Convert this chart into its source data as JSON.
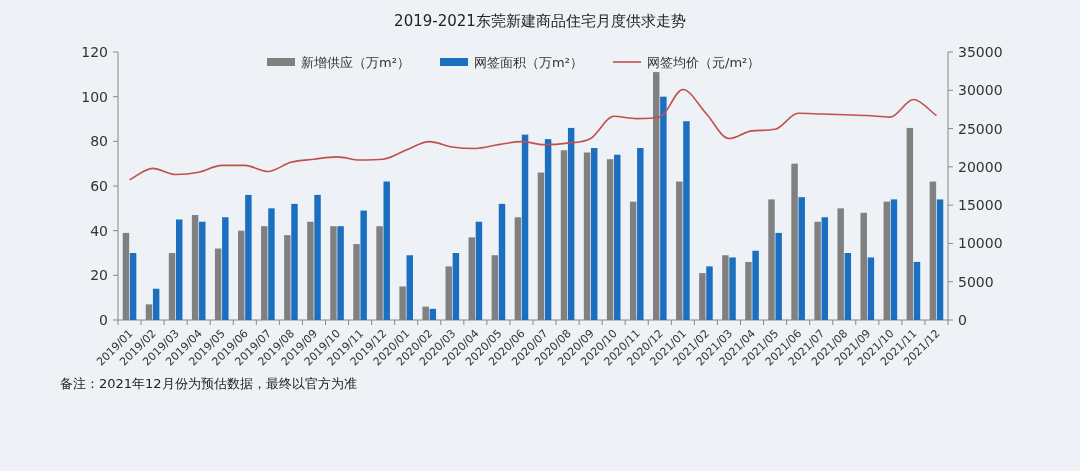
{
  "chart_data": {
    "type": "bar",
    "title": "2019-2021东莞新建商品住宅月度供求走势",
    "categories": [
      "2019/01",
      "2019/02",
      "2019/03",
      "2019/04",
      "2019/05",
      "2019/06",
      "2019/07",
      "2019/08",
      "2019/09",
      "2019/10",
      "2019/11",
      "2019/12",
      "2020/01",
      "2020/02",
      "2020/03",
      "2020/04",
      "2020/05",
      "2020/06",
      "2020/07",
      "2020/08",
      "2020/09",
      "2020/10",
      "2020/11",
      "2020/12",
      "2021/01",
      "2021/02",
      "2021/03",
      "2021/04",
      "2021/05",
      "2021/06",
      "2021/07",
      "2021/08",
      "2021/09",
      "2021/10",
      "2021/11",
      "2021/12"
    ],
    "series": [
      {
        "name": "新增供应（万m²）",
        "color": "#808080",
        "values": [
          39,
          7,
          30,
          47,
          32,
          40,
          42,
          38,
          44,
          42,
          34,
          42,
          15,
          6,
          24,
          37,
          29,
          46,
          66,
          76,
          75,
          72,
          53,
          111,
          62,
          21,
          29,
          26,
          54,
          70,
          44,
          50,
          48,
          53,
          86,
          62
        ]
      },
      {
        "name": "网签面积（万m²）",
        "color": "#1a6fc0",
        "values": [
          30,
          14,
          45,
          44,
          46,
          56,
          50,
          52,
          56,
          42,
          49,
          62,
          29,
          5,
          30,
          44,
          52,
          83,
          81,
          86,
          77,
          74,
          77,
          100,
          89,
          24,
          28,
          31,
          39,
          55,
          46,
          30,
          28,
          54,
          26,
          54
        ]
      },
      {
        "name": "网签均价（元/m²）",
        "color": "#c0504d",
        "type": "line",
        "axis": "y2",
        "values": [
          18300,
          19800,
          19000,
          19300,
          20200,
          20200,
          19400,
          20600,
          21000,
          21300,
          20900,
          21000,
          22200,
          23300,
          22600,
          22400,
          22900,
          23300,
          22900,
          23100,
          23700,
          26600,
          26300,
          26500,
          30100,
          27000,
          23700,
          24700,
          24900,
          27000,
          26900,
          26800,
          26700,
          26500,
          28800,
          26700
        ]
      }
    ],
    "ylim": [
      0,
      120
    ],
    "yticks": [
      0,
      20,
      40,
      60,
      80,
      100,
      120
    ],
    "y2lim": [
      0,
      35000
    ],
    "y2ticks": [
      0,
      5000,
      10000,
      15000,
      20000,
      25000,
      30000,
      35000
    ],
    "legend": "top",
    "grid": false,
    "annotations": [
      "备注：2021年12月份为预估数据，最终以官方为准"
    ]
  }
}
